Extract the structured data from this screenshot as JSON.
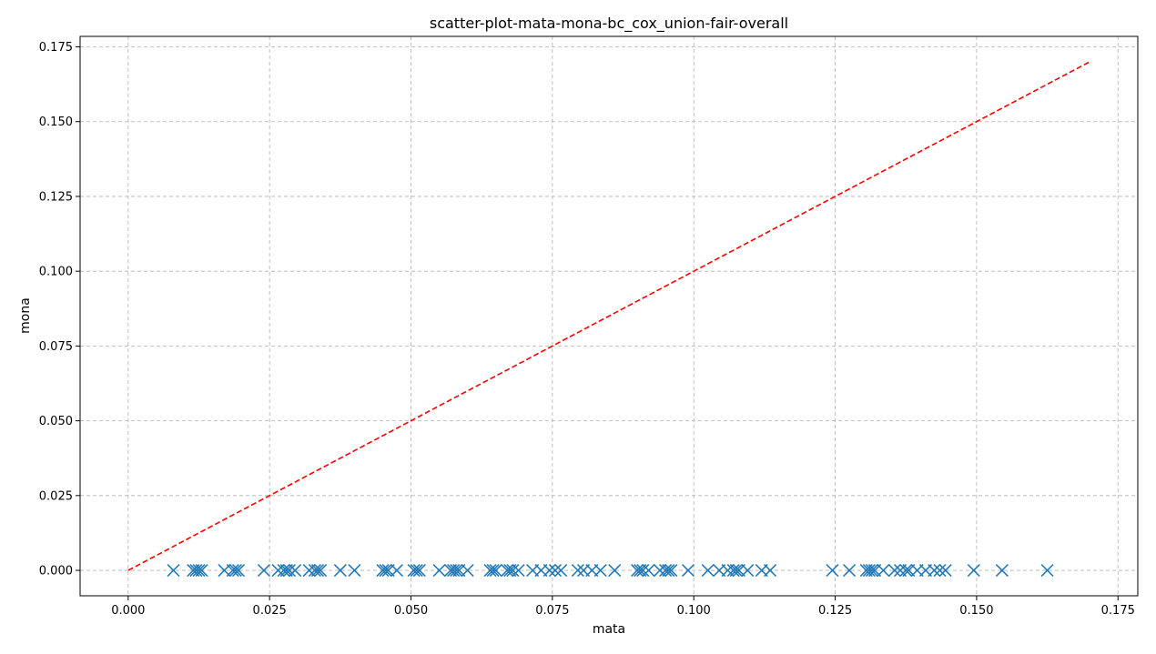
{
  "chart_data": {
    "type": "scatter",
    "title": "scatter-plot-mata-mona-bc_cox_union-fair-overall",
    "xlabel": "mata",
    "ylabel": "mona",
    "xlim": [
      -0.0085,
      0.1785
    ],
    "ylim": [
      -0.0085,
      0.1785
    ],
    "x_ticks": [
      0.0,
      0.025,
      0.05,
      0.075,
      0.1,
      0.125,
      0.15,
      0.175
    ],
    "y_ticks": [
      0.0,
      0.025,
      0.05,
      0.075,
      0.1,
      0.125,
      0.15,
      0.175
    ],
    "x_tick_labels": [
      "0.000",
      "0.025",
      "0.050",
      "0.075",
      "0.100",
      "0.125",
      "0.150",
      "0.175"
    ],
    "y_tick_labels": [
      "0.000",
      "0.025",
      "0.050",
      "0.075",
      "0.100",
      "0.125",
      "0.150",
      "0.175"
    ],
    "grid": true,
    "series": [
      {
        "marker": "x",
        "color": "#1f77b4",
        "x": [
          0.008,
          0.0115,
          0.012,
          0.0125,
          0.013,
          0.017,
          0.0185,
          0.019,
          0.0195,
          0.024,
          0.0265,
          0.0275,
          0.028,
          0.0285,
          0.0295,
          0.032,
          0.033,
          0.0335,
          0.034,
          0.0375,
          0.04,
          0.045,
          0.0455,
          0.046,
          0.0475,
          0.0505,
          0.051,
          0.0515,
          0.055,
          0.057,
          0.0575,
          0.058,
          0.0585,
          0.06,
          0.064,
          0.0645,
          0.065,
          0.067,
          0.0675,
          0.068,
          0.069,
          0.0715,
          0.073,
          0.0745,
          0.0755,
          0.0765,
          0.0795,
          0.0805,
          0.082,
          0.0835,
          0.086,
          0.09,
          0.0905,
          0.091,
          0.092,
          0.094,
          0.095,
          0.0955,
          0.096,
          0.099,
          0.1025,
          0.1045,
          0.106,
          0.107,
          0.1075,
          0.108,
          0.1095,
          0.112,
          0.1135,
          0.1245,
          0.1275,
          0.1305,
          0.131,
          0.1315,
          0.132,
          0.1335,
          0.1355,
          0.1365,
          0.1375,
          0.138,
          0.1395,
          0.141,
          0.1425,
          0.1435,
          0.1445,
          0.1495,
          0.1545,
          0.1625
        ],
        "y_constant": 0.0
      }
    ],
    "reference_line": {
      "style": "dashed",
      "color": "#ff0000",
      "x": [
        0.0,
        0.17
      ],
      "y": [
        0.0,
        0.17
      ]
    }
  }
}
